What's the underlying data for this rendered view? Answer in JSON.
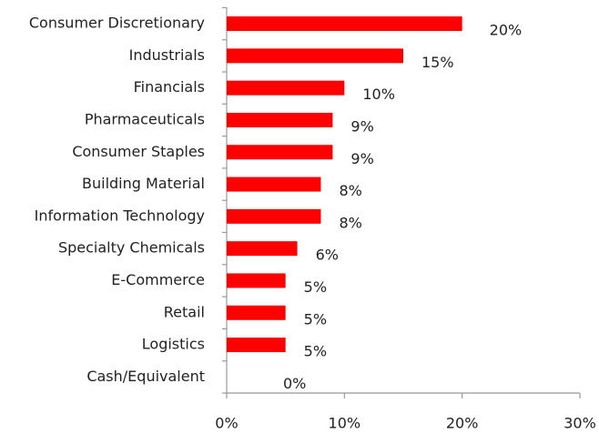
{
  "chart_data": {
    "type": "bar",
    "orientation": "horizontal",
    "categories": [
      "Consumer Discretionary",
      "Industrials",
      "Financials",
      "Pharmaceuticals",
      "Consumer Staples",
      "Building Material",
      "Information Technology",
      "Specialty Chemicals",
      "E-Commerce",
      "Retail",
      "Logistics",
      "Cash/Equivalent"
    ],
    "values": [
      20,
      15,
      10,
      9,
      9,
      8,
      8,
      6,
      5,
      5,
      5,
      0
    ],
    "value_labels": [
      "20%",
      "15%",
      "10%",
      "9%",
      "9%",
      "8%",
      "8%",
      "6%",
      "5%",
      "5%",
      "5%",
      "0%"
    ],
    "color": "#ff0000",
    "xlim": [
      0,
      30
    ],
    "xticks": [
      {
        "value": 0,
        "label": "0%"
      },
      {
        "value": 10,
        "label": "10%"
      },
      {
        "value": 20,
        "label": "20%"
      },
      {
        "value": 30,
        "label": "30%"
      }
    ],
    "grid": false
  }
}
